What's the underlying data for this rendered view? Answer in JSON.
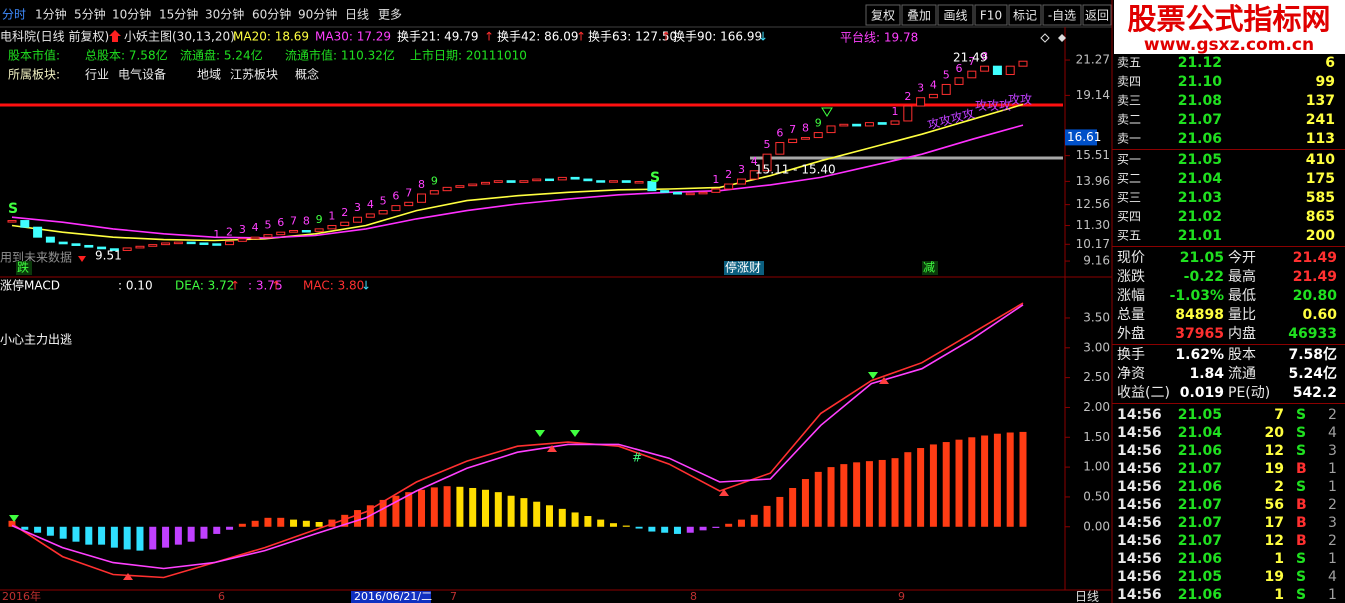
{
  "toolbar": {
    "periods": [
      "分时",
      "1分钟",
      "5分钟",
      "10分钟",
      "15分钟",
      "30分钟",
      "60分钟",
      "90分钟",
      "日线",
      "更多"
    ],
    "buttons": [
      "复权",
      "叠加",
      "画线",
      "F10",
      "标记",
      "-自选",
      "返回"
    ]
  },
  "watermark": {
    "title": "股票公式指标网",
    "url": "www.gsxz.com.cn"
  },
  "info": {
    "stock": "电科院(日线 前复权)",
    "indicator": "小妖主图(30,13,20)",
    "items": [
      {
        "text": "MA20: 18.69"
      },
      {
        "text": "MA30: 17.29"
      },
      {
        "text": "换手21: 49.79",
        "arrow": "↑"
      },
      {
        "text": "换手42: 86.09",
        "arrow": "↑"
      },
      {
        "text": "换手63: 127.50",
        "arrow": "↑"
      },
      {
        "text": "换手90: 166.99",
        "arrow": "↓"
      }
    ],
    "platform": "平台线: 19.78"
  },
  "fundamentals": {
    "row1": [
      "股本市值:",
      "总股本: 7.58亿",
      "流通盘: 5.24亿",
      "流通市值: 110.32亿",
      "上市日期: 20111010"
    ],
    "row2": [
      "所属板块:",
      "行业",
      "电气设备",
      "地域",
      "江苏板块",
      "概念"
    ]
  },
  "annotations": {
    "high": "21.49",
    "low": "9.51",
    "range": "15.11 - 15.40",
    "future": "用到未来数据",
    "fall": "跌",
    "tag": "停涨财",
    "reduce": "减",
    "s1": "S",
    "s2": "S",
    "gong4": "攻攻攻攻",
    "gong3": "攻攻攻",
    "gong2": "攻攻"
  },
  "macd_header": {
    "name": "涨停MACD",
    "v1": ": 0.10",
    "dea": "DEA: 3.72",
    "dea_arrow": "↑",
    "v2": ": 3.75",
    "v2_arrow": "↑",
    "mac": "MAC: 3.80",
    "mac_arrow": "↓",
    "warning": "小心主力出逃",
    "hash": "#"
  },
  "chart_data": [
    {
      "type": "candlestick",
      "closes": [
        11.6,
        11.2,
        10.6,
        10.3,
        10.2,
        10.1,
        10.0,
        9.9,
        9.8,
        9.95,
        10.05,
        10.15,
        10.25,
        10.3,
        10.25,
        10.2,
        10.15,
        10.35,
        10.5,
        10.6,
        10.75,
        10.9,
        11.0,
        10.95,
        11.1,
        11.3,
        11.5,
        11.8,
        12.0,
        12.2,
        12.5,
        12.7,
        13.2,
        13.4,
        13.6,
        13.7,
        13.8,
        13.9,
        14.0,
        13.9,
        14.0,
        14.1,
        14.05,
        14.2,
        14.1,
        14.0,
        13.95,
        14.0,
        13.9,
        13.95,
        13.4,
        13.3,
        13.2,
        13.25,
        13.3,
        13.5,
        13.8,
        14.1,
        14.6,
        15.6,
        16.3,
        16.5,
        16.6,
        16.9,
        17.3,
        17.4,
        17.3,
        17.5,
        17.4,
        17.6,
        18.5,
        19.0,
        19.2,
        19.8,
        20.2,
        20.6,
        20.9,
        20.4,
        20.9,
        21.2
      ],
      "td_counts": [
        null,
        null,
        null,
        null,
        null,
        null,
        null,
        null,
        null,
        null,
        null,
        null,
        null,
        null,
        null,
        null,
        1,
        2,
        3,
        4,
        5,
        6,
        7,
        8,
        9,
        1,
        2,
        3,
        4,
        5,
        6,
        7,
        8,
        9,
        null,
        null,
        null,
        null,
        null,
        null,
        null,
        null,
        null,
        null,
        null,
        null,
        null,
        null,
        null,
        null,
        null,
        null,
        null,
        null,
        null,
        1,
        2,
        3,
        4,
        5,
        6,
        7,
        8,
        9,
        null,
        null,
        null,
        null,
        null,
        1,
        2,
        3,
        4,
        5,
        6,
        7,
        8,
        null,
        null,
        null
      ],
      "lines": [
        {
          "color": "#ffff40",
          "values": [
            11.3,
            10.9,
            10.6,
            10.45,
            10.4,
            10.5,
            10.8,
            11.3,
            12.2,
            12.8,
            13.1,
            13.3,
            13.45,
            13.5,
            13.6,
            14.3,
            15.2,
            16.0,
            16.8,
            17.7,
            18.6
          ]
        },
        {
          "color": "#ff30ff",
          "values": [
            11.8,
            11.5,
            11.1,
            10.8,
            10.6,
            10.55,
            10.7,
            11.1,
            11.7,
            12.2,
            12.6,
            12.9,
            13.15,
            13.3,
            13.4,
            13.75,
            14.2,
            14.9,
            15.6,
            16.5,
            17.35
          ]
        }
      ],
      "red_line": 18.56,
      "gray_line": 15.37,
      "cursor_price": 16.61,
      "ylim": [
        8.32,
        23.08
      ],
      "yticks": [
        21.27,
        19.14,
        15.51,
        13.96,
        12.56,
        {
          "value": 11.3,
          "label": "11.30"
        },
        10.17,
        9.16
      ]
    },
    {
      "type": "macd",
      "histogram": [
        0.1,
        -0.05,
        -0.1,
        -0.15,
        -0.2,
        -0.25,
        -0.3,
        -0.3,
        -0.35,
        -0.38,
        -0.4,
        -0.38,
        -0.35,
        -0.3,
        -0.25,
        -0.2,
        -0.12,
        -0.05,
        0.05,
        0.1,
        0.15,
        0.15,
        0.12,
        0.1,
        0.08,
        0.12,
        0.2,
        0.28,
        0.36,
        0.45,
        0.52,
        0.58,
        0.62,
        0.66,
        0.68,
        0.67,
        0.65,
        0.62,
        0.58,
        0.52,
        0.48,
        0.42,
        0.36,
        0.3,
        0.24,
        0.18,
        0.12,
        0.06,
        0.02,
        -0.03,
        -0.08,
        -0.1,
        -0.12,
        -0.1,
        -0.06,
        -0.02,
        0.05,
        0.12,
        0.2,
        0.35,
        0.5,
        0.65,
        0.8,
        0.92,
        1.0,
        1.05,
        1.08,
        1.1,
        1.12,
        1.15,
        1.25,
        1.32,
        1.38,
        1.42,
        1.46,
        1.5,
        1.53,
        1.56,
        1.58,
        1.59
      ],
      "lines": [
        {
          "color": "#ff3030",
          "values": [
            0.05,
            -0.5,
            -0.8,
            -0.85,
            -0.6,
            -0.35,
            -0.05,
            0.25,
            0.75,
            1.1,
            1.35,
            1.42,
            1.35,
            1.05,
            0.6,
            0.9,
            1.9,
            2.45,
            2.75,
            3.25,
            3.75
          ]
        },
        {
          "color": "#ff40ff",
          "values": [
            0.02,
            -0.35,
            -0.6,
            -0.7,
            -0.6,
            -0.4,
            -0.12,
            0.15,
            0.6,
            0.98,
            1.25,
            1.38,
            1.38,
            1.15,
            0.75,
            0.8,
            1.7,
            2.4,
            2.65,
            3.15,
            3.72
          ]
        }
      ],
      "ylim": [
        -1.06,
        4.17
      ],
      "yticks": [
        {
          "value": 0,
          "label": "0.00"
        },
        {
          "value": 0.5,
          "label": "0.50"
        },
        {
          "value": 1,
          "label": "1.00"
        },
        {
          "value": 1.5,
          "label": "1.50"
        },
        {
          "value": 2,
          "label": "2.00"
        },
        {
          "value": 2.5,
          "label": "2.50"
        },
        {
          "value": 3,
          "label": "3.00"
        },
        {
          "value": 3.5,
          "label": "3.50"
        }
      ]
    }
  ],
  "date_axis": {
    "labels": [
      "2016年",
      "6",
      "2016/06/21/二",
      "7",
      "8",
      "9"
    ],
    "period": "日线"
  },
  "order_book": {
    "sell": [
      [
        "卖五",
        "21.12",
        "6"
      ],
      [
        "卖四",
        "21.10",
        "99"
      ],
      [
        "卖三",
        "21.08",
        "137"
      ],
      [
        "卖二",
        "21.07",
        "241"
      ],
      [
        "卖一",
        "21.06",
        "113"
      ]
    ],
    "buy": [
      [
        "买一",
        "21.05",
        "410"
      ],
      [
        "买二",
        "21.04",
        "175"
      ],
      [
        "买三",
        "21.03",
        "585"
      ],
      [
        "买四",
        "21.02",
        "865"
      ],
      [
        "买五",
        "21.01",
        "200"
      ]
    ]
  },
  "stats": [
    [
      "现价",
      "21.05",
      "今开",
      "21.49"
    ],
    [
      "涨跌",
      "-0.22",
      "最高",
      "21.49"
    ],
    [
      "涨幅",
      "-1.03%",
      "最低",
      "20.80"
    ],
    [
      "总量",
      "84898",
      "量比",
      "0.60"
    ],
    [
      "外盘",
      "37965",
      "内盘",
      "46933"
    ],
    [
      "换手",
      "1.62%",
      "股本",
      "7.58亿"
    ],
    [
      "净资",
      "1.84",
      "流通",
      "5.24亿"
    ],
    [
      "收益(二)",
      "0.019",
      "PE(动)",
      "542.2"
    ]
  ],
  "trades": [
    [
      "14:56",
      "21.05",
      "7",
      "S",
      "2"
    ],
    [
      "14:56",
      "21.04",
      "20",
      "S",
      "4"
    ],
    [
      "14:56",
      "21.06",
      "12",
      "S",
      "3"
    ],
    [
      "14:56",
      "21.07",
      "19",
      "B",
      "1"
    ],
    [
      "14:56",
      "21.06",
      "2",
      "S",
      "1"
    ],
    [
      "14:56",
      "21.07",
      "56",
      "B",
      "2"
    ],
    [
      "14:56",
      "21.07",
      "17",
      "B",
      "3"
    ],
    [
      "14:56",
      "21.07",
      "12",
      "B",
      "2"
    ],
    [
      "14:56",
      "21.06",
      "1",
      "S",
      "1"
    ],
    [
      "14:56",
      "21.05",
      "19",
      "S",
      "4"
    ],
    [
      "14:56",
      "21.06",
      "1",
      "S",
      "1"
    ]
  ]
}
